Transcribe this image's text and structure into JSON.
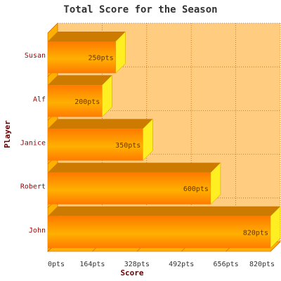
{
  "chart_data": {
    "type": "bar",
    "orientation": "horizontal",
    "title": "Total Score for the Season",
    "xlabel": "Score",
    "ylabel": "Player",
    "categories": [
      "Susan",
      "Alf",
      "Janice",
      "Robert",
      "John"
    ],
    "values": [
      250,
      200,
      350,
      600,
      820
    ],
    "value_labels": [
      "250pts",
      "200pts",
      "350pts",
      "600pts",
      "820pts"
    ],
    "xlim": [
      0,
      820
    ],
    "x_ticks": [
      0,
      164,
      328,
      492,
      656,
      820
    ],
    "x_tick_labels": [
      "0pts",
      "164pts",
      "328pts",
      "492pts",
      "656pts",
      "820pts"
    ],
    "grid": true,
    "style": "3d"
  },
  "colors": {
    "plot_background": "#ffcc80",
    "grid": "#cc6600",
    "bar_top": "#cc7a00",
    "bar_front_light": "#ffb000",
    "bar_front_dark": "#ff7a00",
    "bar_side": "#ffee22",
    "title": "#333333",
    "axis_title": "#660000",
    "category_label": "#990000",
    "tick_label": "#333333",
    "value_label": "#663300"
  }
}
